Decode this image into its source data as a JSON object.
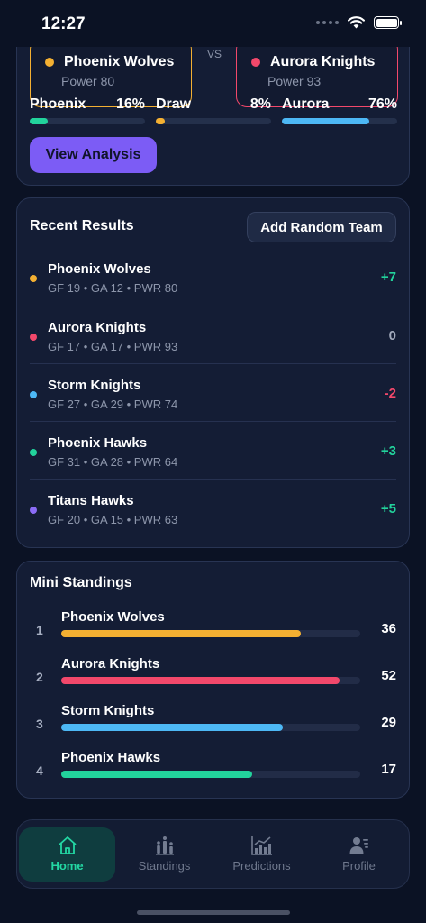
{
  "status_bar": {
    "time": "12:27"
  },
  "match": {
    "home": {
      "name": "Phoenix Wolves",
      "power": "Power 80",
      "color": "#f4b032"
    },
    "away": {
      "name": "Aurora Knights",
      "power": "Power 93",
      "color": "#f2486b"
    },
    "vs_label": "VS",
    "probabilities": [
      {
        "label": "Phoenix",
        "value": "16%",
        "fraction": 0.16,
        "color": "#22d39c"
      },
      {
        "label": "Draw",
        "value": "8%",
        "fraction": 0.08,
        "color": "#f4b032"
      },
      {
        "label": "Aurora",
        "value": "76%",
        "fraction": 0.76,
        "color": "#4db8f5"
      }
    ],
    "analysis_button": "View Analysis"
  },
  "recent_results": {
    "title": "Recent Results",
    "add_button": "Add Random Team",
    "rows": [
      {
        "name": "Phoenix Wolves",
        "stats": "GF 19 • GA 12 • PWR 80",
        "diff": "+7",
        "dot_color": "#f4b032",
        "diff_color": "#22d39c"
      },
      {
        "name": "Aurora Knights",
        "stats": "GF 17 • GA 17 • PWR 93",
        "diff": "0",
        "dot_color": "#f2486b",
        "diff_color": "#a3abbd"
      },
      {
        "name": "Storm Knights",
        "stats": "GF 27 • GA 29 • PWR 74",
        "diff": "-2",
        "dot_color": "#4db8f5",
        "diff_color": "#f2486b"
      },
      {
        "name": "Phoenix Hawks",
        "stats": "GF 31 • GA 28 • PWR 64",
        "diff": "+3",
        "dot_color": "#22d39c",
        "diff_color": "#22d39c"
      },
      {
        "name": "Titans Hawks",
        "stats": "GF 20 • GA 15 • PWR 63",
        "diff": "+5",
        "dot_color": "#8b6cf6",
        "diff_color": "#22d39c"
      }
    ]
  },
  "mini_standings": {
    "title": "Mini Standings",
    "rows": [
      {
        "rank": "1",
        "name": "Phoenix Wolves",
        "points": "36",
        "fraction": 0.8,
        "color": "#f4b032"
      },
      {
        "rank": "2",
        "name": "Aurora Knights",
        "points": "52",
        "fraction": 0.93,
        "color": "#f2486b"
      },
      {
        "rank": "3",
        "name": "Storm Knights",
        "points": "29",
        "fraction": 0.74,
        "color": "#4db8f5"
      },
      {
        "rank": "4",
        "name": "Phoenix Hawks",
        "points": "17",
        "fraction": 0.64,
        "color": "#22d39c"
      }
    ]
  },
  "nav": {
    "items": [
      {
        "label": "Home",
        "icon": "home-icon"
      },
      {
        "label": "Standings",
        "icon": "standings-icon"
      },
      {
        "label": "Predictions",
        "icon": "predictions-icon"
      },
      {
        "label": "Profile",
        "icon": "profile-icon"
      }
    ]
  }
}
